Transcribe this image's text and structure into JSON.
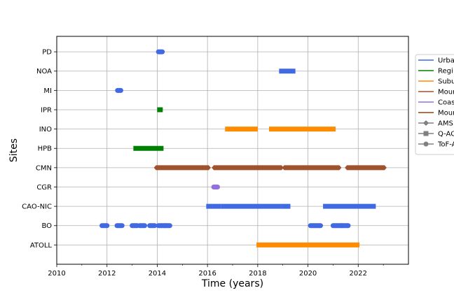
{
  "chart_data": {
    "type": "timeline",
    "xlabel": "Time (years)",
    "ylabel": "Sites",
    "xlim": [
      2010,
      2024
    ],
    "x_ticks": [
      2010,
      2012,
      2014,
      2016,
      2018,
      2020,
      2022
    ],
    "x_minor_ticks": [
      2011,
      2013,
      2015,
      2017,
      2019,
      2021,
      2023
    ],
    "grid": true,
    "legend_position": "right",
    "sites": [
      "ATOLL",
      "BO",
      "CAO-NIC",
      "CGR",
      "CMN",
      "HPB",
      "INO",
      "IPR",
      "MI",
      "NOA",
      "PD"
    ],
    "site_types": [
      {
        "name": "Urba",
        "color": "#4169e1"
      },
      {
        "name": "Regi",
        "color": "#008000"
      },
      {
        "name": "Subu",
        "color": "#ff8c00"
      },
      {
        "name": "Moun",
        "color": "#a0522d"
      },
      {
        "name": "Coas",
        "color": "#9370db"
      },
      {
        "name": "Moun",
        "color": "#8b4513"
      }
    ],
    "instruments": [
      {
        "name": "AMS",
        "marker": "diamond"
      },
      {
        "name": "Q-AC",
        "marker": "square"
      },
      {
        "name": "ToF-A",
        "marker": "circle"
      }
    ],
    "series": [
      {
        "site": "PD",
        "color": "#4169e1",
        "marker": "circle",
        "periods": [
          [
            2014.05,
            2014.2
          ]
        ]
      },
      {
        "site": "NOA",
        "color": "#4169e1",
        "marker": "square",
        "periods": [
          [
            2018.85,
            2019.5
          ]
        ]
      },
      {
        "site": "MI",
        "color": "#4169e1",
        "marker": "circle",
        "periods": [
          [
            2012.42,
            2012.55
          ]
        ]
      },
      {
        "site": "IPR",
        "color": "#008000",
        "marker": "square",
        "periods": [
          [
            2014.0,
            2014.22
          ]
        ]
      },
      {
        "site": "INO",
        "color": "#ff8c00",
        "marker": "square",
        "periods": [
          [
            2016.7,
            2018.0
          ],
          [
            2018.45,
            2021.1
          ]
        ]
      },
      {
        "site": "HPB",
        "color": "#008000",
        "marker": "square",
        "periods": [
          [
            2013.05,
            2014.25
          ]
        ]
      },
      {
        "site": "CMN",
        "color": "#a0522d",
        "marker": "diamond",
        "periods": [
          [
            2013.95,
            2016.05
          ],
          [
            2016.25,
            2018.95
          ],
          [
            2019.05,
            2019.95
          ],
          [
            2019.95,
            2020.95
          ],
          [
            2020.95,
            2021.25
          ],
          [
            2021.55,
            2023.05
          ]
        ]
      },
      {
        "site": "CGR",
        "color": "#9370db",
        "marker": "circle",
        "periods": [
          [
            2016.25,
            2016.4
          ]
        ]
      },
      {
        "site": "CAO-NIC",
        "color": "#4169e1",
        "marker": "square",
        "periods": [
          [
            2015.95,
            2016.55
          ],
          [
            2016.55,
            2018.95
          ],
          [
            2018.95,
            2019.3
          ],
          [
            2020.6,
            2022.7
          ]
        ]
      },
      {
        "site": "BO",
        "color": "#4169e1",
        "marker": "circle",
        "periods": [
          [
            2011.8,
            2012.0
          ],
          [
            2012.4,
            2012.6
          ],
          [
            2013.0,
            2013.2
          ],
          [
            2013.3,
            2013.5
          ],
          [
            2013.7,
            2013.9
          ],
          [
            2014.05,
            2014.3
          ],
          [
            2014.3,
            2014.5
          ],
          [
            2020.1,
            2020.5
          ],
          [
            2021.0,
            2021.35
          ],
          [
            2021.35,
            2021.6
          ]
        ]
      },
      {
        "site": "ATOLL",
        "color": "#ff8c00",
        "marker": "square",
        "periods": [
          [
            2017.95,
            2022.05
          ]
        ]
      }
    ]
  }
}
